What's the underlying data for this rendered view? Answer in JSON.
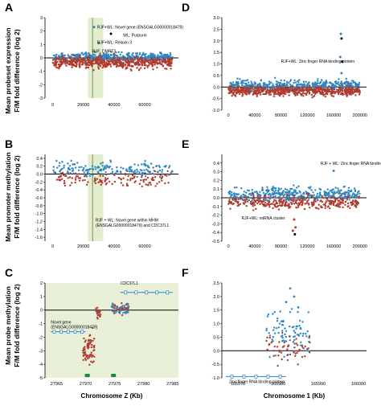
{
  "chart_data": [
    {
      "id": "A",
      "type": "scatter",
      "panel_label": "A",
      "ylim": [
        -3,
        3
      ],
      "xlim": [
        -5000,
        82000
      ],
      "yticks": [
        "-3",
        "-2",
        "-1",
        "0",
        "1",
        "2",
        "3"
      ],
      "xticks": [
        "0",
        "20000",
        "40000",
        "60000"
      ],
      "xtick_values": [
        0,
        20000,
        40000,
        60000
      ],
      "highlight": {
        "x0": 23000,
        "x1": 33000
      },
      "vline_x": 26000,
      "point_clusters": [
        {
          "x_range": [
            0,
            78000
          ],
          "count": 420,
          "y_center": 0.05,
          "spread": 0.22,
          "color": "#2e86c1"
        },
        {
          "x_range": [
            0,
            78000
          ],
          "count": 520,
          "y_center": -0.35,
          "spread": 0.3,
          "color": "#b03a2e"
        }
      ],
      "annotations": [
        {
          "text": "RJF+WL: Novel gene (ENSGALG00000018479)",
          "x": 29000,
          "y": 2.2
        },
        {
          "text": "WL: Purpurin",
          "x": 46000,
          "y": 1.6
        },
        {
          "text": "RJF+WL: Relaxin 3",
          "x": 29000,
          "y": 1.05
        },
        {
          "text": "RJF: DMRT3",
          "x": 26000,
          "y": 0.4
        }
      ]
    },
    {
      "id": "B",
      "type": "scatter",
      "panel_label": "B",
      "ylim": [
        -1.7,
        0.5
      ],
      "xlim": [
        -5000,
        82000
      ],
      "yticks": [
        "0.4",
        "0.2",
        "0.0",
        "-0.2",
        "-0.4",
        "-0.6",
        "-0.8",
        "-1.0",
        "-1.2",
        "-1.4",
        "-1.6"
      ],
      "ytick_values": [
        0.4,
        0.2,
        0,
        -0.2,
        -0.4,
        -0.6,
        -0.8,
        -1.0,
        -1.2,
        -1.4,
        -1.6
      ],
      "xticks": [
        "0",
        "20000",
        "40000",
        "60000"
      ],
      "xtick_values": [
        0,
        20000,
        40000,
        60000
      ],
      "highlight": {
        "x0": 23000,
        "x1": 33000
      },
      "vline_x": 26000,
      "point_clusters": [
        {
          "x_range": [
            0,
            78000
          ],
          "count": 180,
          "y_center": 0.12,
          "spread": 0.13,
          "color": "#2e86c1"
        },
        {
          "x_range": [
            0,
            78000
          ],
          "count": 130,
          "y_center": -0.15,
          "spread": 0.12,
          "color": "#b03a2e"
        }
      ],
      "annotations": [
        {
          "text": "RJF + WL: Novel gene within MHM",
          "x": 28000,
          "y": -1.2
        },
        {
          "text": "(ENSGALG00000018479) and CDC37L1",
          "x": 28000,
          "y": -1.33
        }
      ]
    },
    {
      "id": "C",
      "type": "scatter",
      "panel_label": "C",
      "ylim": [
        -5,
        2
      ],
      "xlim": [
        27963,
        27986
      ],
      "yticks": [
        "2",
        "1",
        "0",
        "-1",
        "-2",
        "-3",
        "-4",
        "-5"
      ],
      "ytick_values": [
        2,
        1,
        0,
        -1,
        -2,
        -3,
        -4,
        -5
      ],
      "xticks": [
        "27965",
        "27970",
        "27975",
        "27980",
        "27985"
      ],
      "xtick_values": [
        27965,
        27970,
        27975,
        27980,
        27985
      ],
      "xlabel": "Chromosome Z (Kb)",
      "point_clusters": [
        {
          "x_range": [
            27969.5,
            27971.5
          ],
          "count": 70,
          "y_center": -2.8,
          "spread": 0.7,
          "color": "#b03a2e"
        },
        {
          "x_range": [
            27971.8,
            27972.6
          ],
          "count": 20,
          "y_center": -0.1,
          "spread": 0.35,
          "color": "#b03a2e"
        },
        {
          "x_range": [
            27974.5,
            27977.5
          ],
          "count": 40,
          "y_center": 0.05,
          "spread": 0.3,
          "color": "#b03a2e"
        },
        {
          "x_range": [
            27974.5,
            27977.5
          ],
          "count": 30,
          "y_center": 0.1,
          "spread": 0.25,
          "color": "#2e86c1"
        }
      ],
      "genes": [
        {
          "label": "Novel gene",
          "label2": "(ENSGALG00000018479)",
          "x0": 27964,
          "x1": 27970,
          "y": -1.6
        },
        {
          "label": "CDC37L1",
          "label2": "",
          "x0": 27976,
          "x1": 27985,
          "y": 1.3
        }
      ],
      "green_marks": [
        27970.3,
        27974.8
      ]
    },
    {
      "id": "D",
      "type": "scatter",
      "panel_label": "D",
      "ylim": [
        -1.0,
        3.0
      ],
      "xlim": [
        -10000,
        210000
      ],
      "yticks": [
        "3.0",
        "2.5",
        "2.0",
        "1.5",
        "1.0",
        "0.5",
        "0.0",
        "-0.5",
        "-1.0"
      ],
      "ytick_values": [
        3,
        2.5,
        2,
        1.5,
        1,
        0.5,
        0,
        -0.5,
        -1
      ],
      "xticks": [
        "0",
        "40000",
        "80000",
        "120000",
        "160000",
        "200000"
      ],
      "xtick_values": [
        0,
        40000,
        80000,
        120000,
        160000,
        200000
      ],
      "point_clusters": [
        {
          "x_range": [
            0,
            200000
          ],
          "count": 480,
          "y_center": 0.05,
          "spread": 0.16,
          "color": "#2e86c1"
        },
        {
          "x_range": [
            0,
            200000
          ],
          "count": 600,
          "y_center": -0.18,
          "spread": 0.14,
          "color": "#b03a2e"
        }
      ],
      "annotations": [
        {
          "text": "RJF+WL: Zinc finger RNA binding protein",
          "x": 80000,
          "y": 1.05
        }
      ]
    },
    {
      "id": "E",
      "type": "scatter",
      "panel_label": "E",
      "ylim": [
        -0.5,
        0.5
      ],
      "xlim": [
        -10000,
        210000
      ],
      "yticks": [
        "0.4",
        "0.3",
        "0.2",
        "0.1",
        "0.0",
        "-0.1",
        "-0.2",
        "-0.3",
        "-0.4",
        "-0.5"
      ],
      "ytick_values": [
        0.4,
        0.3,
        0.2,
        0.1,
        0,
        -0.1,
        -0.2,
        -0.3,
        -0.4,
        -0.5
      ],
      "xticks": [
        "0",
        "40000",
        "80000",
        "120000",
        "160000",
        "200000"
      ],
      "xtick_values": [
        0,
        40000,
        80000,
        120000,
        160000,
        200000
      ],
      "point_clusters": [
        {
          "x_range": [
            0,
            200000
          ],
          "count": 380,
          "y_center": 0.04,
          "spread": 0.05,
          "color": "#2e86c1"
        },
        {
          "x_range": [
            0,
            200000
          ],
          "count": 330,
          "y_center": -0.05,
          "spread": 0.05,
          "color": "#b03a2e"
        }
      ],
      "annotations": [
        {
          "text": "RJF + WL: Zinc finger RNA binding protein",
          "x": 140000,
          "y": 0.38
        },
        {
          "text": "RJF+WL: miRNA cluster",
          "x": 20000,
          "y": -0.25
        }
      ]
    },
    {
      "id": "F",
      "type": "scatter",
      "panel_label": "F",
      "ylim": [
        -1.0,
        2.5
      ],
      "xlim": [
        165966,
        166002
      ],
      "yticks": [
        "2.5",
        "2.0",
        "1.5",
        "1.0",
        "0.5",
        "0.0",
        "-0.5",
        "-1.0"
      ],
      "ytick_values": [
        2.5,
        2,
        1.5,
        1,
        0.5,
        0,
        -0.5,
        -1
      ],
      "xticks": [
        "165970",
        "165980",
        "165990",
        "166000"
      ],
      "xtick_values": [
        165970,
        165980,
        165990,
        166000
      ],
      "xlabel": "Chromosome 1 (Kb)",
      "point_clusters": [
        {
          "x_range": [
            165977,
            165988
          ],
          "count": 90,
          "y_center": 0.6,
          "spread": 0.55,
          "color": "#2e86c1"
        },
        {
          "x_range": [
            165977,
            165988
          ],
          "count": 50,
          "y_center": 0.1,
          "spread": 0.35,
          "color": "#b03a2e"
        }
      ],
      "genes": [
        {
          "label": "Zinc finger RNA binding protein",
          "label2": "",
          "x0": 165967,
          "x1": 165982,
          "y": -0.95
        }
      ]
    }
  ],
  "ylabels": {
    "top": [
      "Mean probeset expression",
      "F/M fold difference (log 2)"
    ],
    "middle": [
      "Mean promoter methylation",
      "F/M fold difference (log 2)"
    ],
    "bottom": [
      "Mean probe methylation",
      "F/M fold difference (log 2)"
    ]
  }
}
